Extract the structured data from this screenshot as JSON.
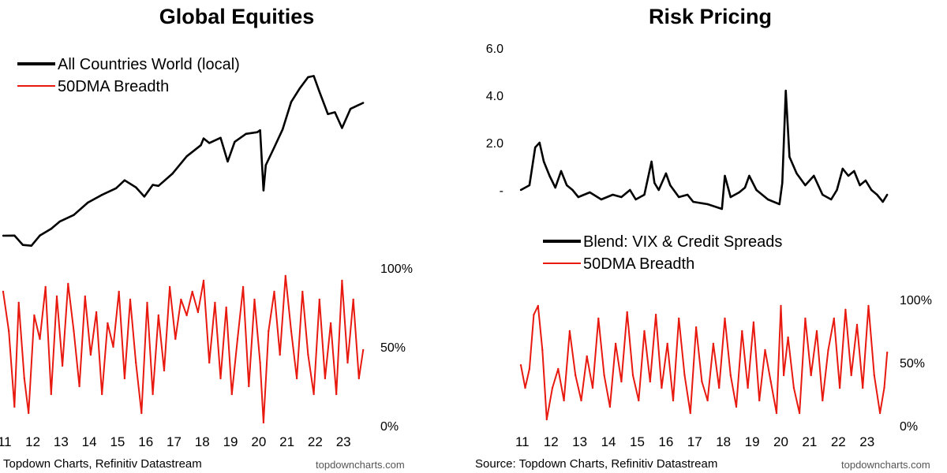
{
  "panels": [
    {
      "title": "Global Equities",
      "source": "Topdown Charts, Refinitiv Datastream",
      "site": "topdowncharts.com"
    },
    {
      "title": "Risk Pricing",
      "source": "Source: Topdown Charts, Refinitiv Datastream",
      "site": "topdowncharts.com"
    }
  ],
  "chart_data": [
    {
      "type": "line",
      "title": "Global Equities",
      "x_ticks": [
        "11",
        "12",
        "13",
        "14",
        "15",
        "16",
        "17",
        "18",
        "19",
        "20",
        "21",
        "22",
        "23"
      ],
      "xlim": [
        2011.0,
        2023.8
      ],
      "series": [
        {
          "name": "All Countries World (local)",
          "color": "#000000",
          "axis": "unlabeled",
          "ylim": [
            0,
            100
          ],
          "x": [
            2011.0,
            2011.4,
            2011.7,
            2012.0,
            2012.3,
            2012.7,
            2013.0,
            2013.5,
            2014.0,
            2014.5,
            2015.0,
            2015.3,
            2015.7,
            2016.0,
            2016.3,
            2016.5,
            2017.0,
            2017.5,
            2018.0,
            2018.1,
            2018.3,
            2018.7,
            2018.95,
            2019.2,
            2019.6,
            2020.0,
            2020.1,
            2020.22,
            2020.3,
            2020.6,
            2020.9,
            2021.2,
            2021.5,
            2021.8,
            2022.0,
            2022.2,
            2022.5,
            2022.75,
            2023.0,
            2023.3,
            2023.55,
            2023.75
          ],
          "values": [
            15.4,
            15.5,
            10.8,
            10.4,
            15.5,
            18.9,
            22.5,
            25.8,
            32.0,
            35.9,
            39.2,
            43.2,
            39.7,
            35.0,
            40.9,
            40.4,
            46.6,
            55.2,
            60.8,
            64.2,
            61.9,
            64.5,
            52.6,
            62.5,
            66.5,
            67.3,
            68.3,
            38.1,
            50.8,
            59.7,
            68.8,
            82.5,
            89.2,
            94.9,
            95.5,
            87.6,
            76.4,
            77.3,
            69.4,
            79.0,
            80.7,
            82.0
          ]
        },
        {
          "name": "50DMA Breadth",
          "color": "#e8190f",
          "axis": "right",
          "yticks": [
            "0%",
            "50%",
            "100%"
          ],
          "ylim": [
            0,
            100
          ],
          "x": [
            2011.0,
            2011.2,
            2011.4,
            2011.55,
            2011.75,
            2011.9,
            2012.1,
            2012.3,
            2012.5,
            2012.7,
            2012.9,
            2013.1,
            2013.3,
            2013.5,
            2013.7,
            2013.9,
            2014.1,
            2014.3,
            2014.5,
            2014.7,
            2014.9,
            2015.1,
            2015.3,
            2015.5,
            2015.7,
            2015.9,
            2016.1,
            2016.3,
            2016.5,
            2016.7,
            2016.9,
            2017.1,
            2017.3,
            2017.5,
            2017.7,
            2017.9,
            2018.1,
            2018.3,
            2018.5,
            2018.7,
            2018.9,
            2019.1,
            2019.3,
            2019.5,
            2019.7,
            2019.9,
            2020.1,
            2020.22,
            2020.4,
            2020.6,
            2020.8,
            2021.0,
            2021.2,
            2021.4,
            2021.6,
            2021.8,
            2022.0,
            2022.2,
            2022.4,
            2022.6,
            2022.8,
            2023.0,
            2023.2,
            2023.4,
            2023.6,
            2023.75
          ],
          "values": [
            85,
            60,
            12,
            78,
            30,
            8,
            70,
            55,
            88,
            20,
            82,
            38,
            90,
            60,
            25,
            82,
            45,
            72,
            20,
            65,
            50,
            85,
            30,
            80,
            40,
            8,
            78,
            20,
            70,
            35,
            88,
            55,
            80,
            70,
            85,
            72,
            92,
            40,
            78,
            30,
            75,
            20,
            55,
            88,
            25,
            80,
            40,
            2,
            60,
            85,
            45,
            95,
            60,
            30,
            85,
            45,
            20,
            80,
            30,
            65,
            20,
            92,
            40,
            80,
            30,
            48
          ]
        }
      ]
    },
    {
      "type": "line",
      "title": "Risk Pricing",
      "x_ticks": [
        "11",
        "12",
        "13",
        "14",
        "15",
        "16",
        "17",
        "18",
        "19",
        "20",
        "21",
        "22",
        "23"
      ],
      "xlim": [
        2011.0,
        2023.8
      ],
      "series": [
        {
          "name": "Blend: VIX & Credit Spreads",
          "color": "#000000",
          "axis": "left",
          "yticks": [
            "-",
            "2.0",
            "4.0",
            "6.0"
          ],
          "ylim": [
            -1.0,
            6.0
          ],
          "x": [
            2011.0,
            2011.3,
            2011.5,
            2011.65,
            2011.8,
            2012.0,
            2012.2,
            2012.4,
            2012.6,
            2012.8,
            2013.0,
            2013.4,
            2013.8,
            2014.2,
            2014.5,
            2014.8,
            2015.0,
            2015.3,
            2015.55,
            2015.65,
            2015.8,
            2016.05,
            2016.2,
            2016.5,
            2016.8,
            2017.0,
            2017.5,
            2018.0,
            2018.1,
            2018.3,
            2018.6,
            2018.8,
            2018.95,
            2019.2,
            2019.6,
            2020.0,
            2020.1,
            2020.22,
            2020.35,
            2020.6,
            2020.9,
            2021.2,
            2021.5,
            2021.8,
            2022.0,
            2022.2,
            2022.4,
            2022.6,
            2022.8,
            2023.0,
            2023.2,
            2023.4,
            2023.6,
            2023.75
          ],
          "values": [
            0.0,
            0.2,
            1.8,
            2.0,
            1.2,
            0.6,
            0.1,
            0.8,
            0.2,
            0.0,
            -0.3,
            -0.1,
            -0.4,
            -0.2,
            -0.3,
            0.0,
            -0.4,
            -0.2,
            1.2,
            0.3,
            0.0,
            0.7,
            0.2,
            -0.3,
            -0.2,
            -0.5,
            -0.6,
            -0.8,
            0.6,
            -0.3,
            -0.1,
            0.1,
            0.6,
            0.0,
            -0.4,
            -0.6,
            0.3,
            4.2,
            1.4,
            0.7,
            0.2,
            0.6,
            -0.2,
            -0.4,
            0.0,
            0.9,
            0.6,
            0.8,
            0.2,
            0.4,
            0.0,
            -0.2,
            -0.5,
            -0.2
          ]
        },
        {
          "name": "50DMA Breadth",
          "color": "#e8190f",
          "axis": "right",
          "yticks": [
            "0%",
            "50%",
            "100%"
          ],
          "ylim": [
            0,
            100
          ],
          "x": [
            2011.0,
            2011.15,
            2011.3,
            2011.45,
            2011.6,
            2011.75,
            2011.9,
            2012.1,
            2012.3,
            2012.5,
            2012.7,
            2012.9,
            2013.1,
            2013.3,
            2013.5,
            2013.7,
            2013.9,
            2014.1,
            2014.3,
            2014.5,
            2014.7,
            2014.9,
            2015.1,
            2015.3,
            2015.5,
            2015.7,
            2015.9,
            2016.1,
            2016.3,
            2016.5,
            2016.7,
            2016.9,
            2017.1,
            2017.3,
            2017.5,
            2017.7,
            2017.9,
            2018.1,
            2018.3,
            2018.5,
            2018.7,
            2018.9,
            2019.1,
            2019.3,
            2019.5,
            2019.7,
            2019.9,
            2020.05,
            2020.15,
            2020.3,
            2020.5,
            2020.7,
            2020.9,
            2021.1,
            2021.3,
            2021.5,
            2021.7,
            2021.9,
            2022.1,
            2022.3,
            2022.5,
            2022.7,
            2022.9,
            2023.1,
            2023.3,
            2023.5,
            2023.65,
            2023.75
          ],
          "values": [
            48,
            30,
            45,
            88,
            95,
            60,
            5,
            30,
            45,
            20,
            75,
            40,
            20,
            55,
            30,
            85,
            40,
            15,
            65,
            35,
            90,
            40,
            20,
            75,
            35,
            88,
            30,
            65,
            20,
            85,
            40,
            10,
            78,
            35,
            20,
            65,
            30,
            85,
            40,
            15,
            75,
            30,
            82,
            20,
            60,
            35,
            10,
            95,
            40,
            70,
            30,
            10,
            85,
            40,
            75,
            20,
            60,
            85,
            30,
            92,
            40,
            80,
            30,
            95,
            40,
            10,
            30,
            58
          ]
        }
      ]
    }
  ]
}
